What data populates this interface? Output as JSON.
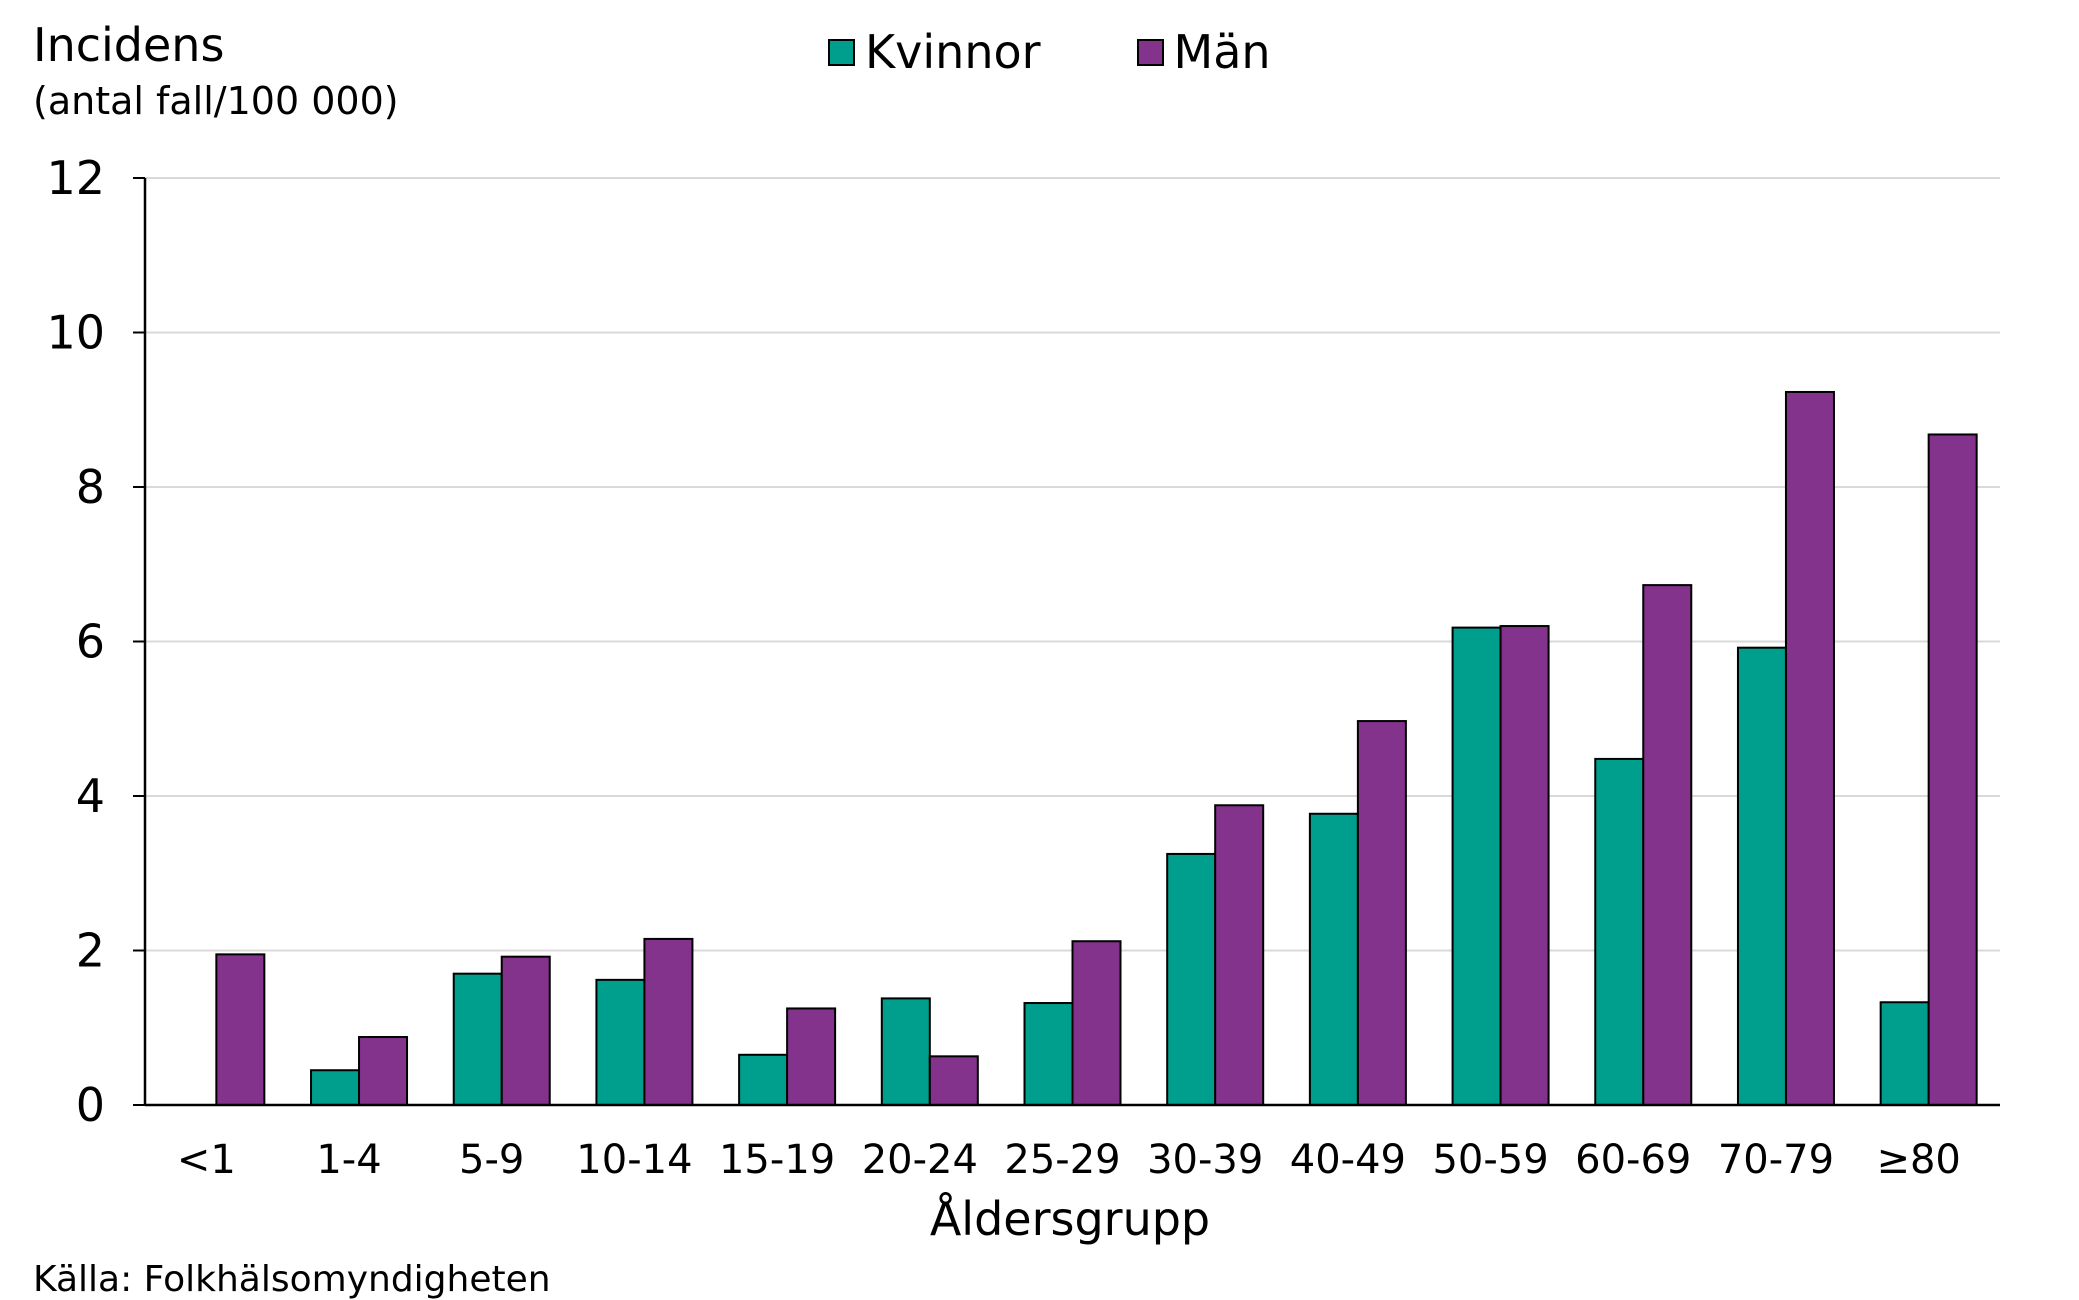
{
  "chart_data": {
    "type": "bar",
    "title": "",
    "ylabel": "Incidens",
    "ylabel_sub": "(antal fall/100 000)",
    "xlabel": "Åldersgrupp",
    "ylim": [
      0,
      12
    ],
    "yticks": [
      "0",
      "2",
      "4",
      "6",
      "8",
      "10",
      "12"
    ],
    "grid": true,
    "legend_placement": "top-center",
    "categories": [
      "<1",
      "1-4",
      "5-9",
      "10-14",
      "15-19",
      "20-24",
      "25-29",
      "30-39",
      "40-49",
      "50-59",
      "60-69",
      "70-79",
      "≥80"
    ],
    "series": [
      {
        "name": "Kvinnor",
        "color": "#009E8C",
        "values": [
          0,
          0.45,
          1.7,
          1.62,
          0.65,
          1.38,
          1.32,
          3.25,
          3.77,
          6.18,
          4.48,
          5.92,
          1.33
        ]
      },
      {
        "name": "Män",
        "color": "#83338C",
        "values": [
          1.95,
          0.88,
          1.92,
          2.15,
          1.25,
          0.63,
          2.12,
          3.88,
          4.97,
          6.2,
          6.73,
          9.23,
          8.68
        ]
      }
    ]
  },
  "source": "Källa: Folkhälsomyndigheten"
}
